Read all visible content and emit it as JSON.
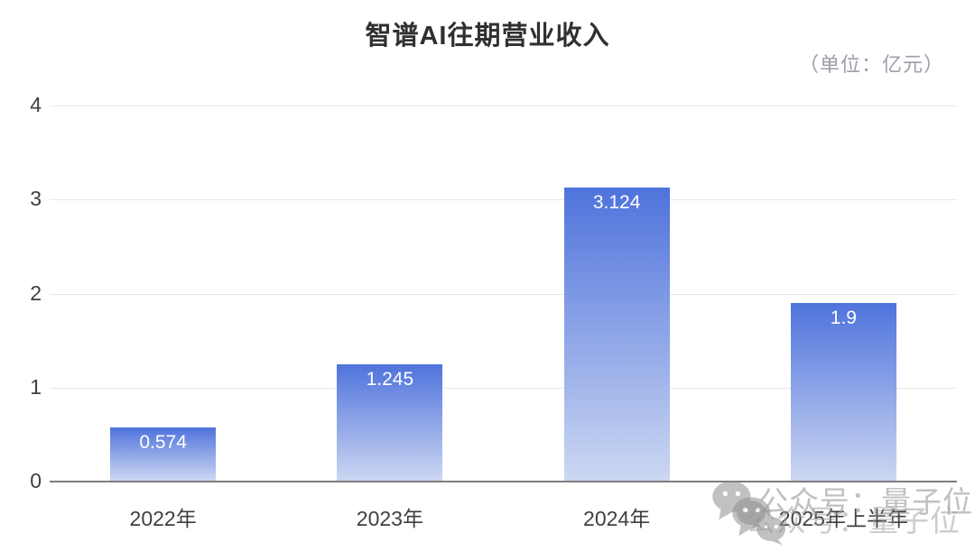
{
  "chart": {
    "title": "智谱AI往期营业收入",
    "unit_label": "（单位：亿元）",
    "watermark_text": "公众号：量子位",
    "colors": {
      "bar_top": "#4F73DC",
      "bar_bottom": "#CCD7F2",
      "title": "#303030",
      "unit": "#9BA0A8",
      "axis_label": "#3F3F3F",
      "gridline": "#E8E8E8",
      "axis_line": "#7D7D7D",
      "value_label": "#FFFFFF",
      "watermark": "#9A9A9A"
    }
  },
  "chart_data": {
    "type": "bar",
    "title": "智谱AI往期营业收入",
    "unit": "亿元",
    "categories": [
      "2022年",
      "2023年",
      "2024年",
      "2025年上半年"
    ],
    "values": [
      0.574,
      1.245,
      3.124,
      1.9
    ],
    "value_labels": [
      "0.574",
      "1.245",
      "3.124",
      "1.9"
    ],
    "xlabel": "",
    "ylabel": "",
    "ylim": [
      0,
      4
    ],
    "yticks": [
      0,
      1,
      2,
      3,
      4
    ],
    "grid": true,
    "legend_position": "none",
    "bar_gradient": [
      "#4F73DC",
      "#CCD7F2"
    ]
  }
}
